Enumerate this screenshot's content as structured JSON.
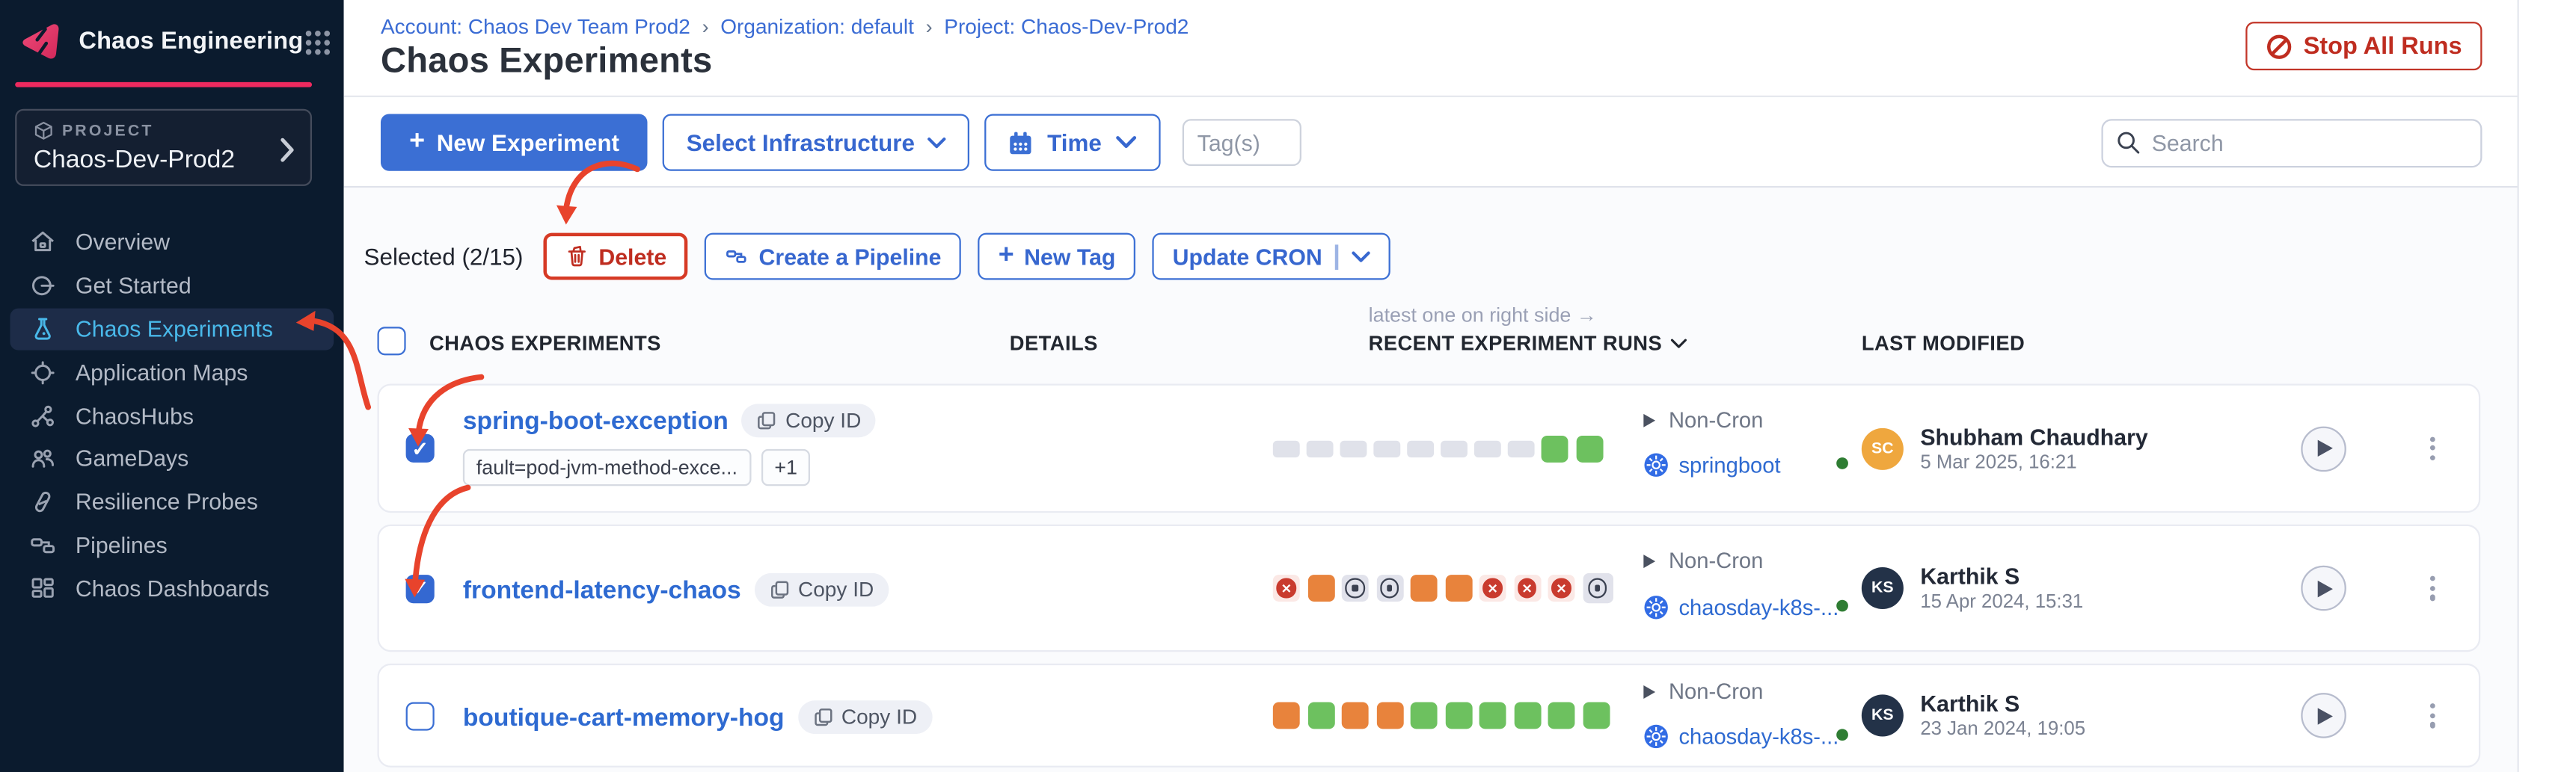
{
  "colors": {
    "sidebar_bg": "#0b1b2e",
    "brand_pink": "#ee2a5f",
    "active_nav": "#49b9ea",
    "primary_blue": "#3b6fd4",
    "link_blue": "#3b6cd4",
    "exp_link": "#2e6ad1",
    "danger_red": "#bf2d20",
    "annotation_red": "#e8432c",
    "run_passed": "#6dc15f",
    "run_error": "#e8833c",
    "run_failed": "#c93b2e",
    "run_empty": "#e0e2ea",
    "green_dot": "#2f7d33",
    "k8s_blue": "#326ce5"
  },
  "sidebar": {
    "app_title": "Chaos Engineering",
    "project_label": "PROJECT",
    "project_name": "Chaos-Dev-Prod2",
    "items": [
      {
        "label": "Overview",
        "active": false
      },
      {
        "label": "Get Started",
        "active": false
      },
      {
        "label": "Chaos Experiments",
        "active": true
      },
      {
        "label": "Application Maps",
        "active": false
      },
      {
        "label": "ChaosHubs",
        "active": false
      },
      {
        "label": "GameDays",
        "active": false
      },
      {
        "label": "Resilience Probes",
        "active": false
      },
      {
        "label": "Pipelines",
        "active": false
      },
      {
        "label": "Chaos Dashboards",
        "active": false
      }
    ]
  },
  "header": {
    "breadcrumb": {
      "account": "Account: Chaos Dev Team Prod2",
      "organization": "Organization: default",
      "project": "Project: Chaos-Dev-Prod2"
    },
    "page_title": "Chaos Experiments",
    "stop_all_runs": "Stop All Runs"
  },
  "toolbar": {
    "new_experiment": "New Experiment",
    "select_infrastructure": "Select Infrastructure",
    "time": "Time",
    "tags_placeholder": "Tag(s)",
    "search_placeholder": "Search"
  },
  "selection": {
    "selected_count": "Selected (2/15)",
    "delete": "Delete",
    "create_pipeline": "Create a Pipeline",
    "new_tag": "New Tag",
    "update_cron": "Update CRON"
  },
  "table": {
    "note": "latest one on right side →",
    "col_experiments": "CHAOS EXPERIMENTS",
    "col_details": "DETAILS",
    "col_runs": "RECENT EXPERIMENT RUNS",
    "col_modified": "LAST MODIFIED",
    "rows": [
      {
        "name": "spring-boot-exception",
        "copy_id": "Copy ID",
        "checked": true,
        "tags": [
          "fault=pod-jvm-method-exce...",
          "+1"
        ],
        "schedule": "Non-Cron",
        "infra": "springboot",
        "runs": [
          "empty",
          "empty",
          "empty",
          "empty",
          "empty",
          "empty",
          "empty",
          "empty",
          "passed",
          "passed"
        ],
        "modified_by": "Shubham Chaudhary",
        "initials": "SC",
        "avatar_color": "#efa73e",
        "modified_date": "5 Mar 2025, 16:21"
      },
      {
        "name": "frontend-latency-chaos",
        "copy_id": "Copy ID",
        "checked": true,
        "tags": [],
        "schedule": "Non-Cron",
        "infra": "chaosday-k8s-...",
        "runs": [
          "failed",
          "error",
          "stopped",
          "stopped",
          "error",
          "error",
          "failed",
          "failed",
          "failed",
          "stopped_lg"
        ],
        "modified_by": "Karthik S",
        "initials": "KS",
        "avatar_color": "#233248",
        "modified_date": "15 Apr 2024, 15:31"
      },
      {
        "name": "boutique-cart-memory-hog",
        "copy_id": "Copy ID",
        "checked": false,
        "tags": [],
        "schedule": "Non-Cron",
        "infra": "chaosday-k8s-...",
        "runs": [
          "error",
          "passed",
          "error",
          "error",
          "passed",
          "passed",
          "passed",
          "passed",
          "passed",
          "passed"
        ],
        "modified_by": "Karthik S",
        "initials": "KS",
        "avatar_color": "#233248",
        "modified_date": "23 Jan 2024, 19:05"
      }
    ]
  }
}
